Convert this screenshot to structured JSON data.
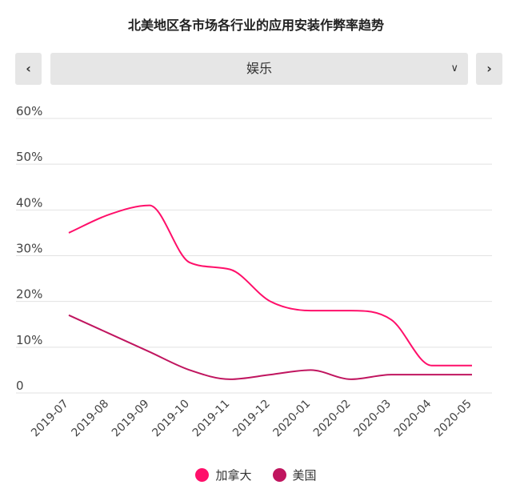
{
  "page": {
    "title": "北美地区各市场各行业的应用安装作弊率趋势",
    "selector": {
      "value": "娱乐",
      "prev_icon": "chevron-left-icon",
      "next_icon": "chevron-right-icon",
      "dropdown_icon": "chevron-down-icon",
      "prev_glyph": "‹",
      "next_glyph": "›",
      "dropdown_glyph": "∨"
    }
  },
  "chart_data": {
    "type": "line",
    "title": "",
    "xlabel": "",
    "ylabel": "",
    "x": [
      "2019-07",
      "2019-08",
      "2019-09",
      "2019-10",
      "2019-11",
      "2019-12",
      "2020-01",
      "2020-02",
      "2020-03",
      "2020-04",
      "2020-05"
    ],
    "ylim": [
      0,
      60
    ],
    "yticks": [
      0,
      10,
      20,
      30,
      40,
      50,
      60
    ],
    "ytick_labels": [
      "0",
      "10%",
      "20%",
      "30%",
      "40%",
      "50%",
      "60%"
    ],
    "grid": true,
    "legend_position": "bottom",
    "series": [
      {
        "name": "加拿大",
        "color": "#ff0f6a",
        "values": [
          35,
          39,
          41,
          28.5,
          27,
          20,
          18,
          18,
          16,
          6,
          6
        ]
      },
      {
        "name": "美国",
        "color": "#c0155f",
        "values": [
          17,
          13,
          9,
          5,
          3,
          4,
          5,
          3,
          4,
          4,
          4
        ]
      }
    ]
  }
}
